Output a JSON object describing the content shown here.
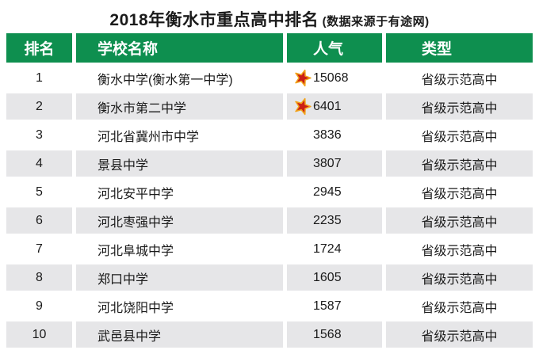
{
  "title": {
    "main": "2018年衡水市重点高中排名",
    "note": "(数据来源于有途网)"
  },
  "colors": {
    "header_green": "#0e8f4f",
    "row_alt": "#e6e6e8",
    "star_fill": "#cb2017",
    "star_stroke": "#f2a41c",
    "text": "#1a1a1a"
  },
  "chart_data": {
    "type": "table",
    "title": "2018年衡水市重点高中排名",
    "subtitle": "(数据来源于有途网)",
    "columns": [
      "排名",
      "学校名称",
      "人气",
      "类型"
    ],
    "rows": [
      {
        "rank": "1",
        "school": "衡水中学(衡水第一中学)",
        "popularity": "15068",
        "star": true,
        "type": "省级示范高中"
      },
      {
        "rank": "2",
        "school": "衡水市第二中学",
        "popularity": "6401",
        "star": true,
        "type": "省级示范高中"
      },
      {
        "rank": "3",
        "school": "河北省冀州市中学",
        "popularity": "3836",
        "star": false,
        "type": "省级示范高中"
      },
      {
        "rank": "4",
        "school": "景县中学",
        "popularity": "3807",
        "star": false,
        "type": "省级示范高中"
      },
      {
        "rank": "5",
        "school": "河北安平中学",
        "popularity": "2945",
        "star": false,
        "type": "省级示范高中"
      },
      {
        "rank": "6",
        "school": "河北枣强中学",
        "popularity": "2235",
        "star": false,
        "type": "省级示范高中"
      },
      {
        "rank": "7",
        "school": "河北阜城中学",
        "popularity": "1724",
        "star": false,
        "type": "省级示范高中"
      },
      {
        "rank": "8",
        "school": "郑口中学",
        "popularity": "1605",
        "star": false,
        "type": "省级示范高中"
      },
      {
        "rank": "9",
        "school": "河北饶阳中学",
        "popularity": "1587",
        "star": false,
        "type": "省级示范高中"
      },
      {
        "rank": "10",
        "school": "武邑县中学",
        "popularity": "1568",
        "star": false,
        "type": "省级示范高中"
      }
    ]
  }
}
